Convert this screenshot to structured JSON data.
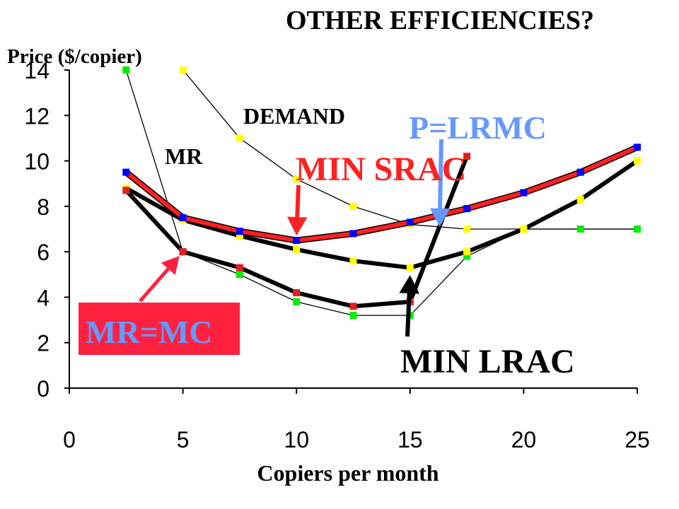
{
  "slide": {
    "title": "OTHER EFFICIENCIES?"
  },
  "chart_data": {
    "type": "line",
    "xlabel": "Copiers per month",
    "ylabel": "Price ($/copier)",
    "xlim": [
      0,
      25
    ],
    "ylim": [
      0,
      14
    ],
    "x_ticks": [
      0,
      5,
      10,
      15,
      20,
      25
    ],
    "y_ticks": [
      0,
      2,
      4,
      6,
      8,
      10,
      12,
      14
    ],
    "grid": false,
    "series": [
      {
        "name": "",
        "role": "demand",
        "color": "#000000",
        "marker_color": "#ffff00",
        "weight": "thin",
        "x": [
          5,
          7.5,
          10,
          12.5,
          15,
          17.5,
          20,
          22.5,
          25
        ],
        "y": [
          14,
          11,
          9.2,
          8,
          7.2,
          7,
          7,
          7,
          7
        ]
      },
      {
        "name": "",
        "role": "marginal-revenue",
        "color": "#000000",
        "marker_color": "#00ee00",
        "weight": "thin",
        "x": [
          2.5,
          5,
          7.5,
          10,
          12.5,
          15,
          17.5,
          20,
          22.5,
          25
        ],
        "y": [
          14,
          6,
          5,
          3.8,
          3.2,
          3.2,
          5.8,
          7,
          7,
          7
        ]
      },
      {
        "name": "",
        "role": "short-run-average-cost",
        "color": "#ff2020",
        "marker_color": "#0000ff",
        "weight": "thick",
        "x": [
          2.5,
          5,
          7.5,
          10,
          12.5,
          15,
          17.5,
          20,
          22.5,
          25
        ],
        "y": [
          9.5,
          7.5,
          6.9,
          6.5,
          6.8,
          7.3,
          7.9,
          8.6,
          9.5,
          10.6
        ]
      },
      {
        "name": "",
        "role": "long-run-average-cost",
        "color": "#000000",
        "marker_color": "#ffff00",
        "weight": "thick",
        "x": [
          2.5,
          5,
          7.5,
          10,
          12.5,
          15,
          17.5,
          20,
          22.5,
          25
        ],
        "y": [
          8.8,
          7.4,
          6.7,
          6.1,
          5.6,
          5.3,
          6,
          7,
          8.3,
          10
        ]
      },
      {
        "name": "",
        "role": "marginal-cost",
        "color": "#000000",
        "marker_color": "#e02020",
        "weight": "thick",
        "x": [
          2.5,
          5,
          7.5,
          10,
          12.5,
          15,
          17.5
        ],
        "y": [
          8.7,
          6,
          5.3,
          4.2,
          3.6,
          3.8,
          10.2
        ]
      }
    ],
    "annotations": [
      {
        "id": "demand",
        "text": "DEMAND",
        "color": "#000000",
        "style": "plain"
      },
      {
        "id": "mr",
        "text": "MR",
        "color": "#000000",
        "style": "plain"
      },
      {
        "id": "min-srac",
        "text": "MIN SRAC",
        "color": "#ff2020",
        "style": "plain",
        "arrow_color": "#ff2020",
        "points_to": [
          10,
          6.5
        ]
      },
      {
        "id": "p-lrmc",
        "text": "P=LRMC",
        "color": "#6699ff",
        "style": "plain",
        "arrow_color": "#6699ff",
        "points_to": [
          16.3,
          7.1
        ]
      },
      {
        "id": "mr-mc",
        "text": "MR=MC",
        "color": "#6699ff",
        "style": "boxed",
        "box_color": "#ff2040",
        "arrow_color": "#ff2040",
        "points_to": [
          5,
          6
        ]
      },
      {
        "id": "min-lrac",
        "text": "MIN LRAC",
        "color": "#000000",
        "style": "plain",
        "arrow_color": "#000000",
        "points_to": [
          15,
          5.1
        ]
      }
    ]
  }
}
